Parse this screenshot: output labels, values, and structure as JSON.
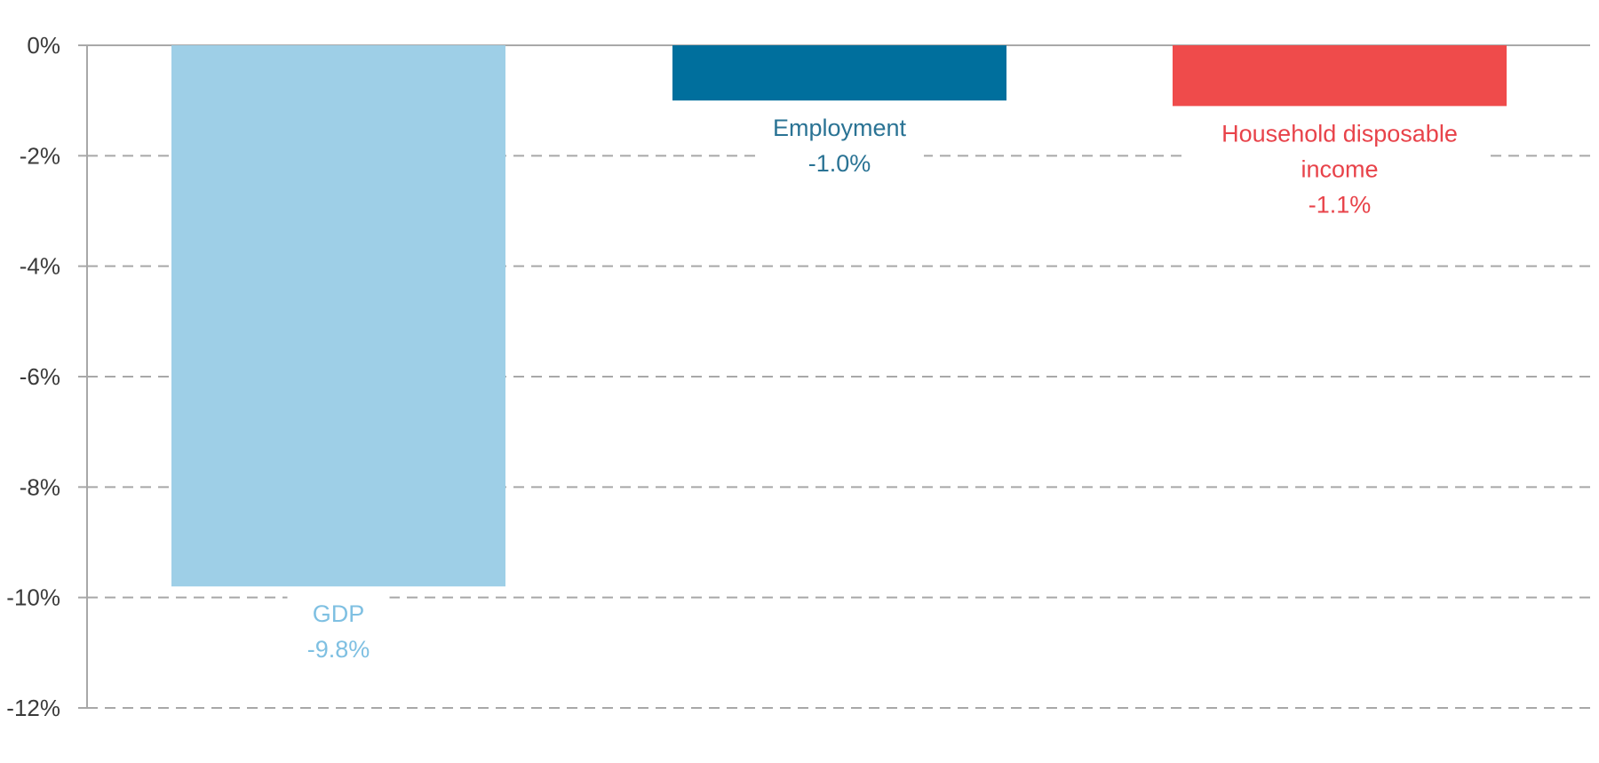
{
  "chart_data": {
    "type": "bar",
    "title": "",
    "xlabel": "",
    "ylabel": "",
    "ylim": [
      -12,
      0
    ],
    "yticks": [
      0,
      -2,
      -4,
      -6,
      -8,
      -10,
      -12
    ],
    "ytick_labels": [
      "0%",
      "-2%",
      "-4%",
      "-6%",
      "-8%",
      "-10%",
      "-12%"
    ],
    "grid": true,
    "legend": "none",
    "bars": [
      {
        "category_lines": [
          "GDP"
        ],
        "value": -9.8,
        "value_label": "-9.8%",
        "color": "#9ecfe7",
        "label_color": "#7fc0e2",
        "label_position": "below-bar"
      },
      {
        "category_lines": [
          "Employment"
        ],
        "value": -1.0,
        "value_label": "-1.0%",
        "color": "#006f9d",
        "label_color": "#2a7394",
        "label_position": "below-bar"
      },
      {
        "category_lines": [
          "Household disposable",
          "income"
        ],
        "value": -1.1,
        "value_label": "-1.1%",
        "color": "#ef4b4b",
        "label_color": "#e8434a",
        "label_position": "below-bar"
      }
    ]
  }
}
